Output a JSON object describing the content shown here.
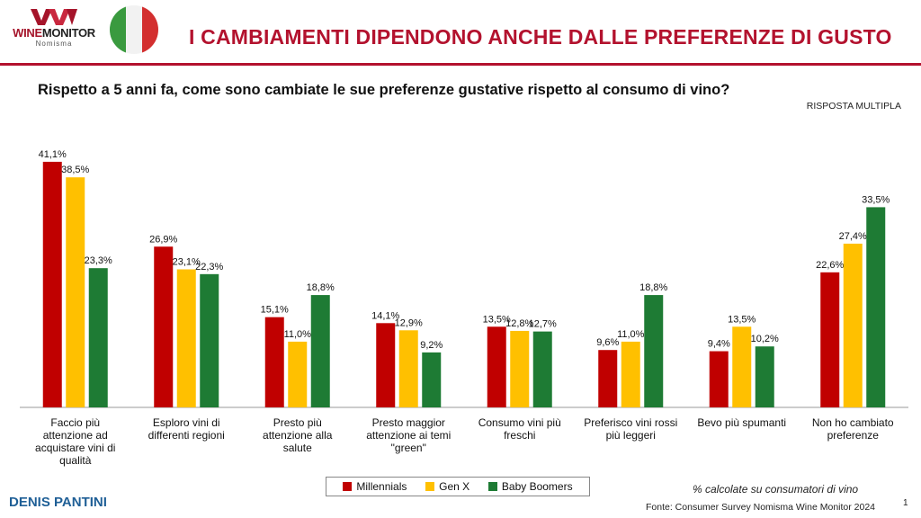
{
  "header": {
    "logo_text_wine": "WINE",
    "logo_text_monitor": "MONITOR",
    "logo_sub": "Nomisma",
    "title": "I CAMBIAMENTI DIPENDONO ANCHE DALLE PREFERENZE DI GUSTO"
  },
  "colors": {
    "accent": "#b3122e",
    "millennials": "#c00000",
    "genx": "#ffc000",
    "boomers": "#1e7b34",
    "flag_green": "#3a9a3f",
    "flag_white": "#f2f2f2",
    "flag_red": "#d32f2f"
  },
  "question": "Rispetto a 5 anni fa, come sono cambiate le sue preferenze gustative rispetto al consumo di vino?",
  "response_type": "RISPOSTA MULTIPLA",
  "chart_data": {
    "type": "bar",
    "categories": [
      [
        "Faccio più",
        "attenzione ad",
        "acquistare vini di",
        "qualità"
      ],
      [
        "Esploro vini di",
        "differenti regioni"
      ],
      [
        "Presto più",
        "attenzione alla",
        "salute"
      ],
      [
        "Presto maggior",
        "attenzione ai temi",
        "\"green\""
      ],
      [
        "Consumo vini più",
        "freschi"
      ],
      [
        "Preferisco vini rossi",
        "più leggeri"
      ],
      [
        "Bevo più spumanti"
      ],
      [
        "Non ho cambiato",
        "preferenze"
      ]
    ],
    "series": [
      {
        "name": "Millennials",
        "values": [
          41.1,
          26.9,
          15.1,
          14.1,
          13.5,
          9.6,
          9.4,
          22.6
        ],
        "labels": [
          "41,1%",
          "26,9%",
          "15,1%",
          "14,1%",
          "13,5%",
          "9,6%",
          "9,4%",
          "22,6%"
        ]
      },
      {
        "name": "Gen X",
        "values": [
          38.5,
          23.1,
          11.0,
          12.9,
          12.8,
          11.0,
          13.5,
          27.4
        ],
        "labels": [
          "38,5%",
          "23,1%",
          "11,0%",
          "12,9%",
          "12,8%",
          "11,0%",
          "13,5%",
          "27,4%"
        ]
      },
      {
        "name": "Baby Boomers",
        "values": [
          23.3,
          22.3,
          18.8,
          9.2,
          12.7,
          18.8,
          10.2,
          33.5
        ],
        "labels": [
          "23,3%",
          "22,3%",
          "18,8%",
          "9,2%",
          "12,7%",
          "18,8%",
          "10,2%",
          "33,5%"
        ]
      }
    ],
    "ylim": [
      0,
      45
    ],
    "grid": false,
    "legend_position": "bottom-center"
  },
  "footer": {
    "note": "% calcolate su consumatori di vino",
    "author": "DENIS PANTINI",
    "source": "Fonte: Consumer Survey Nomisma Wine Monitor 2024",
    "page": "1"
  }
}
